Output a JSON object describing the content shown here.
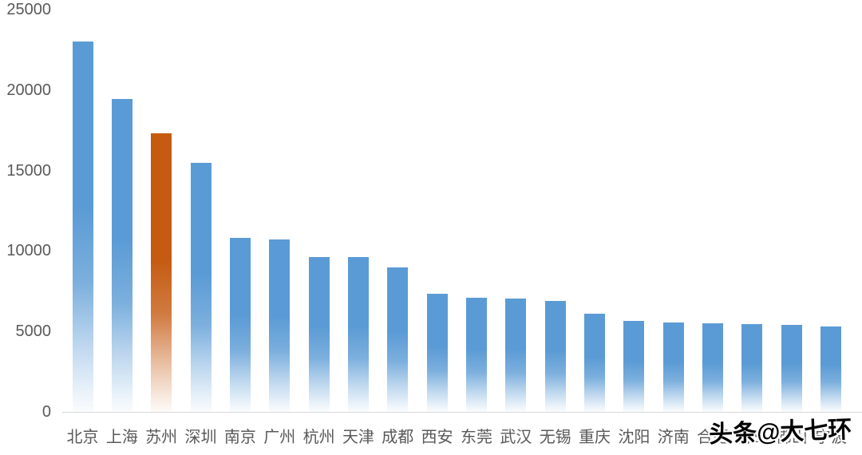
{
  "page": {
    "background_color": "#ffffff"
  },
  "watermark": {
    "text": "头条@大七环",
    "text_color": "#000000",
    "outline_color": "#ffffff"
  },
  "chart_data": {
    "type": "bar",
    "title": "",
    "xlabel": "",
    "ylabel": "",
    "categories": [
      "北京",
      "上海",
      "苏州",
      "深圳",
      "南京",
      "广州",
      "杭州",
      "天津",
      "成都",
      "西安",
      "东莞",
      "武汉",
      "无锡",
      "重庆",
      "沈阳",
      "济南",
      "合肥",
      "青岛",
      "佛山",
      "宁波"
    ],
    "values": [
      23000,
      19450,
      17300,
      15500,
      10800,
      10700,
      9600,
      9600,
      9000,
      7350,
      7100,
      7050,
      6900,
      6100,
      5650,
      5550,
      5500,
      5450,
      5400,
      5300
    ],
    "highlighted_category": "苏州",
    "highlight_index": 2,
    "bar_color": "#5B9BD5",
    "highlight_color": "#C55A11",
    "bar_fill_style": "gradient-fade-to-white-at-bottom",
    "yticks": [
      0,
      5000,
      10000,
      15000,
      20000,
      25000
    ],
    "ylim": [
      0,
      25000
    ],
    "grid": false,
    "legend": false,
    "axis_label_color": "#595959",
    "axis_line_color": "#D9D9D9"
  }
}
